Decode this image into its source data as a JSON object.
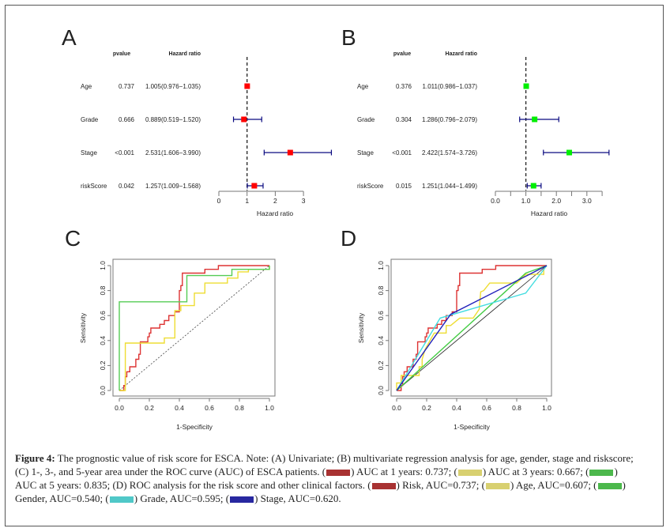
{
  "panels": {
    "A": {
      "letter": "A",
      "header": {
        "pvalue": "pvalue",
        "hr": "Hazard ratio"
      },
      "xlabel": "Hazard ratio",
      "tick_labels": [
        "0",
        "1",
        "2",
        "3"
      ],
      "point_color": "#ff0000",
      "rows": [
        {
          "label": "Age",
          "pvalue": "0.737",
          "hr_text": "1.005(0.976−1.035)",
          "hr": 1.005,
          "lo": 0.976,
          "hi": 1.035
        },
        {
          "label": "Grade",
          "pvalue": "0.666",
          "hr_text": "0.889(0.519−1.520)",
          "hr": 0.889,
          "lo": 0.519,
          "hi": 1.52
        },
        {
          "label": "Stage",
          "pvalue": "<0.001",
          "hr_text": "2.531(1.606−3.990)",
          "hr": 2.531,
          "lo": 1.606,
          "hi": 3.99
        },
        {
          "label": "riskScore",
          "pvalue": "0.042",
          "hr_text": "1.257(1.009−1.568)",
          "hr": 1.257,
          "lo": 1.009,
          "hi": 1.568
        }
      ]
    },
    "B": {
      "letter": "B",
      "header": {
        "pvalue": "pvalue",
        "hr": "Hazard ratio"
      },
      "xlabel": "Hazard ratio",
      "tick_labels": [
        "0.0",
        "1.0",
        "2.0",
        "3.0"
      ],
      "point_color": "#00ee00",
      "rows": [
        {
          "label": "Age",
          "pvalue": "0.376",
          "hr_text": "1.011(0.986−1.037)",
          "hr": 1.011,
          "lo": 0.986,
          "hi": 1.037
        },
        {
          "label": "Grade",
          "pvalue": "0.304",
          "hr_text": "1.286(0.796−2.079)",
          "hr": 1.286,
          "lo": 0.796,
          "hi": 2.079
        },
        {
          "label": "Stage",
          "pvalue": "<0.001",
          "hr_text": "2.422(1.574−3.726)",
          "hr": 2.422,
          "lo": 1.574,
          "hi": 3.726
        },
        {
          "label": "riskScore",
          "pvalue": "0.015",
          "hr_text": "1.251(1.044−1.499)",
          "hr": 1.251,
          "lo": 1.044,
          "hi": 1.499
        }
      ]
    },
    "C": {
      "letter": "C"
    },
    "D": {
      "letter": "D"
    }
  },
  "chart_data": [
    {
      "type": "forest",
      "panel": "A",
      "xlabel": "Hazard ratio",
      "xlim": [
        0,
        3
      ],
      "reference": 1,
      "categories": [
        "Age",
        "Grade",
        "Stage",
        "riskScore"
      ],
      "hr": [
        1.005,
        0.889,
        2.531,
        1.257
      ],
      "lower": [
        0.976,
        0.519,
        1.606,
        1.009
      ],
      "upper": [
        1.035,
        1.52,
        3.99,
        1.568
      ]
    },
    {
      "type": "forest",
      "panel": "B",
      "xlabel": "Hazard ratio",
      "xlim": [
        0,
        3.5
      ],
      "reference": 1,
      "categories": [
        "Age",
        "Grade",
        "Stage",
        "riskScore"
      ],
      "hr": [
        1.011,
        1.286,
        2.422,
        1.251
      ],
      "lower": [
        0.986,
        0.796,
        1.574,
        1.044
      ],
      "upper": [
        1.037,
        2.079,
        3.726,
        1.499
      ]
    },
    {
      "type": "line",
      "panel": "C",
      "xlabel": "1-Specificity",
      "ylabel": "Sensitivity",
      "xlim": [
        0,
        1
      ],
      "ylim": [
        0,
        1
      ],
      "ticks": [
        "0.0",
        "0.2",
        "0.4",
        "0.6",
        "0.8",
        "1.0"
      ],
      "diagonal": "dashed",
      "series": [
        {
          "color": "#dd3333",
          "points": [
            [
              0,
              0
            ],
            [
              0.03,
              0
            ],
            [
              0.03,
              0.04
            ],
            [
              0.04,
              0.04
            ],
            [
              0.04,
              0.11
            ],
            [
              0.05,
              0.11
            ],
            [
              0.05,
              0.15
            ],
            [
              0.07,
              0.15
            ],
            [
              0.07,
              0.19
            ],
            [
              0.11,
              0.19
            ],
            [
              0.11,
              0.25
            ],
            [
              0.13,
              0.25
            ],
            [
              0.13,
              0.29
            ],
            [
              0.14,
              0.29
            ],
            [
              0.14,
              0.39
            ],
            [
              0.19,
              0.39
            ],
            [
              0.19,
              0.43
            ],
            [
              0.2,
              0.43
            ],
            [
              0.2,
              0.46
            ],
            [
              0.21,
              0.46
            ],
            [
              0.21,
              0.5
            ],
            [
              0.27,
              0.5
            ],
            [
              0.27,
              0.53
            ],
            [
              0.3,
              0.53
            ],
            [
              0.3,
              0.56
            ],
            [
              0.33,
              0.56
            ],
            [
              0.33,
              0.6
            ],
            [
              0.37,
              0.6
            ],
            [
              0.37,
              0.63
            ],
            [
              0.4,
              0.63
            ],
            [
              0.4,
              0.8
            ],
            [
              0.41,
              0.8
            ],
            [
              0.41,
              0.84
            ],
            [
              0.42,
              0.84
            ],
            [
              0.42,
              0.94
            ],
            [
              0.57,
              0.94
            ],
            [
              0.57,
              0.97
            ],
            [
              0.66,
              0.97
            ],
            [
              0.66,
              1
            ],
            [
              1,
              1
            ]
          ]
        },
        {
          "color": "#eedd33",
          "points": [
            [
              0,
              0
            ],
            [
              0.04,
              0
            ],
            [
              0.04,
              0.38
            ],
            [
              0.3,
              0.38
            ],
            [
              0.3,
              0.42
            ],
            [
              0.37,
              0.42
            ],
            [
              0.37,
              0.64
            ],
            [
              0.41,
              0.64
            ],
            [
              0.41,
              0.68
            ],
            [
              0.5,
              0.68
            ],
            [
              0.5,
              0.78
            ],
            [
              0.57,
              0.78
            ],
            [
              0.57,
              0.86
            ],
            [
              0.72,
              0.86
            ],
            [
              0.72,
              0.9
            ],
            [
              0.79,
              0.9
            ],
            [
              0.79,
              0.95
            ],
            [
              0.86,
              0.95
            ],
            [
              0.86,
              0.97
            ],
            [
              1,
              0.97
            ],
            [
              1,
              1
            ]
          ]
        },
        {
          "color": "#55cc55",
          "points": [
            [
              0,
              0
            ],
            [
              0,
              0.71
            ],
            [
              0.45,
              0.71
            ],
            [
              0.45,
              0.92
            ],
            [
              0.75,
              0.92
            ],
            [
              0.75,
              0.97
            ],
            [
              1,
              0.97
            ],
            [
              1,
              1
            ]
          ]
        }
      ]
    },
    {
      "type": "line",
      "panel": "D",
      "xlabel": "1-Specificity",
      "ylabel": "Sensitivity",
      "xlim": [
        0,
        1
      ],
      "ylim": [
        0,
        1
      ],
      "ticks": [
        "0.0",
        "0.2",
        "0.4",
        "0.6",
        "0.8",
        "1.0"
      ],
      "diagonal": "solid",
      "series": [
        {
          "color": "#dd3333",
          "points": [
            [
              0,
              0
            ],
            [
              0.03,
              0
            ],
            [
              0.03,
              0.04
            ],
            [
              0.04,
              0.04
            ],
            [
              0.04,
              0.11
            ],
            [
              0.05,
              0.11
            ],
            [
              0.05,
              0.15
            ],
            [
              0.07,
              0.15
            ],
            [
              0.07,
              0.19
            ],
            [
              0.11,
              0.19
            ],
            [
              0.11,
              0.25
            ],
            [
              0.13,
              0.25
            ],
            [
              0.13,
              0.29
            ],
            [
              0.14,
              0.29
            ],
            [
              0.14,
              0.39
            ],
            [
              0.19,
              0.39
            ],
            [
              0.19,
              0.43
            ],
            [
              0.2,
              0.43
            ],
            [
              0.2,
              0.46
            ],
            [
              0.21,
              0.46
            ],
            [
              0.21,
              0.5
            ],
            [
              0.27,
              0.5
            ],
            [
              0.27,
              0.53
            ],
            [
              0.3,
              0.53
            ],
            [
              0.3,
              0.56
            ],
            [
              0.33,
              0.56
            ],
            [
              0.33,
              0.6
            ],
            [
              0.37,
              0.6
            ],
            [
              0.37,
              0.63
            ],
            [
              0.4,
              0.63
            ],
            [
              0.4,
              0.8
            ],
            [
              0.41,
              0.8
            ],
            [
              0.41,
              0.84
            ],
            [
              0.42,
              0.84
            ],
            [
              0.42,
              0.94
            ],
            [
              0.57,
              0.94
            ],
            [
              0.57,
              0.97
            ],
            [
              0.66,
              0.97
            ],
            [
              0.66,
              1
            ],
            [
              1,
              1
            ]
          ]
        },
        {
          "color": "#eedd33",
          "points": [
            [
              0,
              0
            ],
            [
              0,
              0.06
            ],
            [
              0.03,
              0.06
            ],
            [
              0.03,
              0.12
            ],
            [
              0.15,
              0.12
            ],
            [
              0.15,
              0.19
            ],
            [
              0.17,
              0.19
            ],
            [
              0.17,
              0.25
            ],
            [
              0.19,
              0.33
            ],
            [
              0.25,
              0.46
            ],
            [
              0.33,
              0.46
            ],
            [
              0.33,
              0.52
            ],
            [
              0.36,
              0.52
            ],
            [
              0.42,
              0.58
            ],
            [
              0.51,
              0.58
            ],
            [
              0.55,
              0.65
            ],
            [
              0.56,
              0.79
            ],
            [
              0.58,
              0.8
            ],
            [
              0.62,
              0.86
            ],
            [
              0.8,
              0.86
            ],
            [
              0.86,
              0.93
            ],
            [
              0.98,
              0.93
            ],
            [
              0.98,
              0.97
            ],
            [
              1,
              1
            ]
          ]
        },
        {
          "color": "#44cc44",
          "points": [
            [
              0,
              0
            ],
            [
              0.86,
              0.94
            ],
            [
              1,
              1
            ]
          ]
        },
        {
          "color": "#44dde0",
          "points": [
            [
              0,
              0
            ],
            [
              0.29,
              0.58
            ],
            [
              0.86,
              0.78
            ],
            [
              1,
              1
            ]
          ]
        },
        {
          "color": "#2222bb",
          "points": [
            [
              0,
              0
            ],
            [
              0.36,
              0.61
            ],
            [
              1,
              1
            ]
          ]
        }
      ]
    }
  ],
  "caption": {
    "lines": [
      [
        {
          "bold": "Figure 4:"
        },
        {
          "text": " The prognostic value of risk score for ESCA. Note: (A) Univariate; (B) multivariate regression analysis for age, gender, stage and riskscore;"
        }
      ],
      [
        {
          "text": "(C) 1-, 3-, and 5-year area under the ROC curve (AUC) of ESCA patients. ("
        },
        {
          "swatch": "#a83232"
        },
        {
          "text": ") AUC at 1 years: 0.737; ("
        },
        {
          "swatch": "#d8d070"
        },
        {
          "text": ") AUC at 3 years: 0.667; ("
        },
        {
          "swatch": "#4cb84c"
        },
        {
          "text": ")"
        }
      ],
      [
        {
          "text": "AUC at 5 years: 0.835; (D) ROC analysis for the risk score and other clinical factors. ("
        },
        {
          "swatch": "#a83232"
        },
        {
          "text": ") Risk, AUC=0.737; ("
        },
        {
          "swatch": "#d8d070"
        },
        {
          "text": ") Age, AUC=0.607; ("
        },
        {
          "swatch": "#4cb84c"
        },
        {
          "text": ")"
        }
      ],
      [
        {
          "text": "Gender, AUC=0.540; ("
        },
        {
          "swatch": "#50c8c8"
        },
        {
          "text": ") Grade, AUC=0.595; ("
        },
        {
          "swatch": "#2828a0"
        },
        {
          "text": ") Stage, AUC=0.620."
        }
      ]
    ]
  }
}
